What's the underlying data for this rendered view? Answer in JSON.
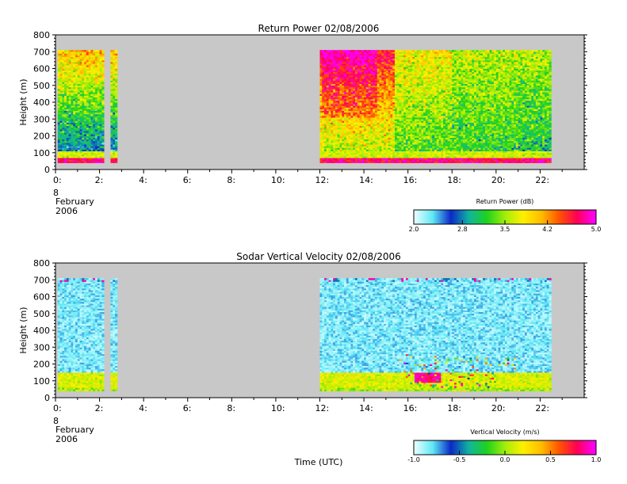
{
  "chart_data": [
    {
      "type": "heatmap",
      "title": "Return Power 02/08/2006",
      "ylabel": "Height (m)",
      "ylim": [
        0,
        800
      ],
      "yticks": [
        "0",
        "100",
        "200",
        "300",
        "400",
        "500",
        "600",
        "700",
        "800"
      ],
      "xlim": [
        0,
        24
      ],
      "xticks": [
        {
          "label": "0:",
          "v": 0
        },
        {
          "label": "2:",
          "v": 2
        },
        {
          "label": "4:",
          "v": 4
        },
        {
          "label": "6:",
          "v": 6
        },
        {
          "label": "8:",
          "v": 8
        },
        {
          "label": "10:",
          "v": 10
        },
        {
          "label": "12:",
          "v": 12
        },
        {
          "label": "14:",
          "v": 14
        },
        {
          "label": "16:",
          "v": 16
        },
        {
          "label": "18:",
          "v": 18
        },
        {
          "label": "20:",
          "v": 20
        },
        {
          "label": "22:",
          "v": 22
        }
      ],
      "date_label": [
        "8",
        "February",
        "2006"
      ],
      "data_intervals_utc": [
        [
          0.1,
          2.2
        ],
        [
          2.5,
          2.8
        ],
        [
          12.0,
          22.5
        ]
      ],
      "data_top_m": 710,
      "colorbar": {
        "title": "Return Power (dB)",
        "range": [
          2.0,
          5.0
        ],
        "ticks": [
          "2.0",
          "2.8",
          "3.5",
          "4.2",
          "5.0"
        ]
      }
    },
    {
      "type": "heatmap",
      "title": "Sodar Vertical Velocity 02/08/2006",
      "ylabel": "Height (m)",
      "xlabel": "Time (UTC)",
      "ylim": [
        0,
        800
      ],
      "yticks": [
        "0",
        "100",
        "200",
        "300",
        "400",
        "500",
        "600",
        "700",
        "800"
      ],
      "xlim": [
        0,
        24
      ],
      "xticks": [
        {
          "label": "0:",
          "v": 0
        },
        {
          "label": "2:",
          "v": 2
        },
        {
          "label": "4:",
          "v": 4
        },
        {
          "label": "6:",
          "v": 6
        },
        {
          "label": "8:",
          "v": 8
        },
        {
          "label": "10:",
          "v": 10
        },
        {
          "label": "12:",
          "v": 12
        },
        {
          "label": "14:",
          "v": 14
        },
        {
          "label": "16:",
          "v": 16
        },
        {
          "label": "18:",
          "v": 18
        },
        {
          "label": "20:",
          "v": 20
        },
        {
          "label": "22:",
          "v": 22
        }
      ],
      "date_label": [
        "8",
        "February",
        "2006"
      ],
      "data_intervals_utc": [
        [
          0.1,
          2.2
        ],
        [
          2.5,
          2.8
        ],
        [
          12.0,
          22.5
        ]
      ],
      "data_top_m": 710,
      "colorbar": {
        "title": "Vertical Velocity (m/s)",
        "range": [
          -1.0,
          1.0
        ],
        "ticks": [
          "-1.0",
          "-0.5",
          "0.0",
          "0.5",
          "1.0"
        ]
      }
    }
  ],
  "colors": {
    "no_data_background": "#c8c8c8",
    "colormap": [
      "#e6ffff",
      "#5fe8f5",
      "#0a28c8",
      "#11b4a0",
      "#1ed21e",
      "#a0ee0a",
      "#fff000",
      "#ffbe00",
      "#ff5500",
      "#ff0055",
      "#ff00ff"
    ]
  }
}
